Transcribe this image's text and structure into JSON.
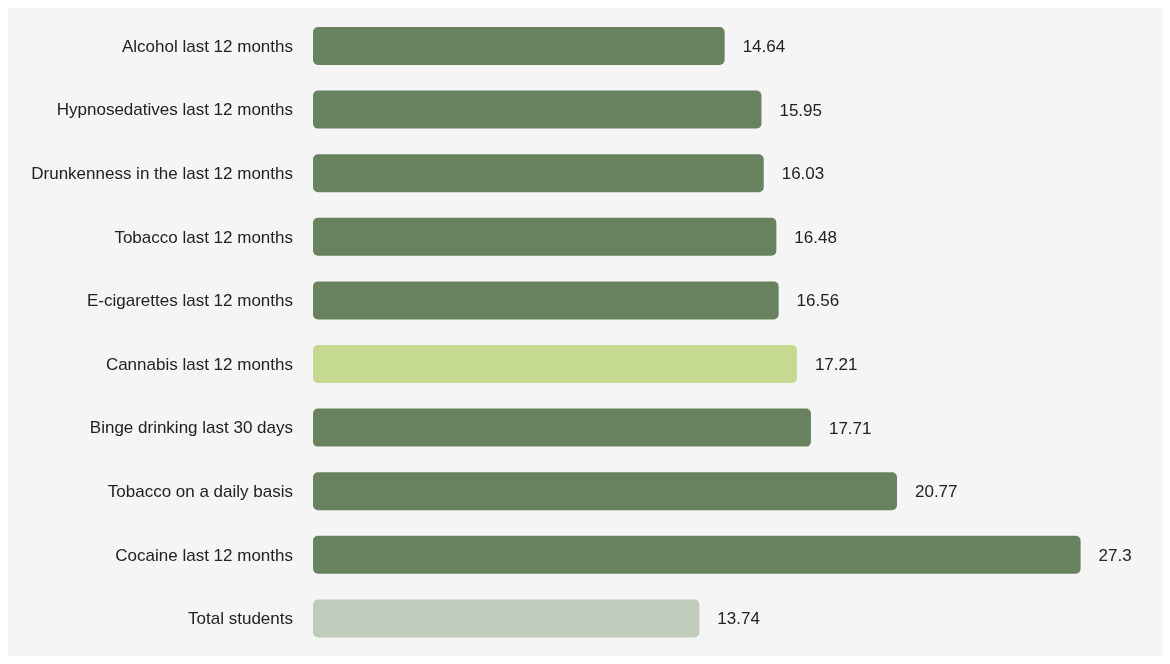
{
  "chart_data": {
    "type": "bar",
    "orientation": "horizontal",
    "categories": [
      "Alcohol last 12 months",
      "Hypnosedatives last 12 months",
      "Drunkenness in the last 12 months",
      "Tobacco last 12 months",
      "E-cigarettes last 12 months",
      "Cannabis last 12 months",
      "Binge drinking last 30 days",
      "Tobacco on a daily basis",
      "Cocaine last 12 months",
      "Total students"
    ],
    "values": [
      14.64,
      15.95,
      16.03,
      16.48,
      16.56,
      17.21,
      17.71,
      20.77,
      27.3,
      13.74
    ],
    "colors": [
      "#68825f",
      "#68825f",
      "#68825f",
      "#68825f",
      "#68825f",
      "#c5d98f",
      "#68825f",
      "#68825f",
      "#68825f",
      "#bfcbbb"
    ],
    "data_labels": true
  }
}
